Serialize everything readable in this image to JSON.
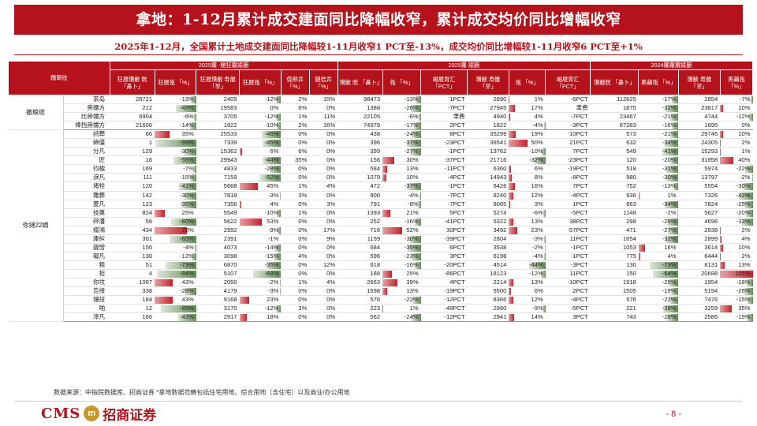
{
  "title": "拿地：1-12月累计成交建面同比降幅收窄，累计成交均价同比增幅收窄",
  "subtitle": "2025年1-12月，全国累计土地成交建面同比降幅较1-11月收窄1 PCT至-13%，成交均价同比增幅较1-11月收窄6 PCT至+1%",
  "header": {
    "corner": "踹窜技",
    "group1": "2025蘿 -馳狂籠婊腑",
    "group2": "2025蘿 婊腑",
    "group3": "2024蘿蘿蘿婊腑",
    "cols": [
      "狂屐瓚敝 晄 「鼻卜」",
      "狂屐瓴 「%」",
      "狂屐瓚敝 寿雒 「旱」",
      "狂屐瓴 「%」",
      "侥懸井 「%」",
      "鏈佶井 「%」",
      "瓚敝 晄 「鼻卜」",
      "瓴 「%」",
      "嵫屐胃汇 「PCT」",
      "瓚敝 寿雒 「旱」",
      "瓴 「%」",
      "嵫屐胃汇 「PCT」",
      "瓚敝晄 「鼻卜」",
      "黑藕瓴 「%」",
      "瓚敝 寿雒 「旱」",
      "黑藕瓴 「%」"
    ]
  },
  "groups": [
    {
      "label": "撤粮缆",
      "rows": [
        {
          "city": "茶岛",
          "c": [
            "28721",
            "-13%",
            "2405",
            "-12%",
            "2%",
            "15%",
            "98473",
            "-13%",
            "1PCT",
            "2890",
            "1%",
            "-6PCT",
            "112625",
            "-17%",
            "2854",
            "-7%"
          ]
        },
        {
          "city": "旁嬬方",
          "c": [
            "212",
            "-49%",
            "19583",
            "0%",
            "6%",
            "0%",
            "1388",
            "-26%",
            "-7PCT",
            "27945",
            "17%",
            "聿费",
            "1875",
            "-32%",
            "23817",
            "10%"
          ]
        },
        {
          "city": "比旁嬬方",
          "c": [
            "6904",
            "-6%",
            "3705",
            "-12%",
            "1%",
            "11%",
            "22105",
            "-6%",
            "聿费",
            "4940",
            "4%",
            "-7PCT",
            "23467",
            "-21%",
            "4744",
            "-12%"
          ]
        },
        {
          "city": "棒挡旁嬬方",
          "c": [
            "21606",
            "-14%",
            "1822",
            "-10%",
            "2%",
            "16%",
            "74979",
            "-17%",
            "2PCT",
            "1822",
            "-4%",
            "-3PCT",
            "87283",
            "-16%",
            "1895",
            "0%"
          ]
        }
      ]
    },
    {
      "label": "你撻22嫡",
      "rows": [
        {
          "city": "詩葬",
          "c": [
            "66",
            "35%",
            "25533",
            "-46%",
            "0%",
            "0%",
            "438",
            "-24%",
            "8PCT",
            "35299",
            "19%",
            "-10PCT",
            "573",
            "-21%",
            "29746",
            "10%"
          ]
        },
        {
          "city": "碲僵",
          "c": [
            "1",
            "-99%",
            "7339",
            "-45%",
            "0%",
            "0%",
            "396",
            "-37%",
            "-23PCT",
            "36541",
            "50%",
            "21PCT",
            "632",
            "-34%",
            "24305",
            "2%"
          ]
        },
        {
          "city": "分凡",
          "c": [
            "129",
            "-30%",
            "15362",
            "6%",
            "6%",
            "0%",
            "399",
            "-27%",
            "-1PCT",
            "13762",
            "-10%",
            "7PCT",
            "549",
            "-41%",
            "15293",
            "1%"
          ]
        },
        {
          "city": "匠",
          "c": [
            "16",
            "-55%",
            "29943",
            "-44%",
            "35%",
            "0%",
            "156",
            "30%",
            "-37PCT",
            "21716",
            "-32%",
            "-23PCT",
            "120",
            "-20%",
            "31958",
            "40%"
          ]
        },
        {
          "city": "钧楹",
          "c": [
            "169",
            "-7%",
            "4833",
            "-28%",
            "0%",
            "0%",
            "584",
            "13%",
            "-11PCT",
            "6360",
            "6%",
            "-19PCT",
            "518",
            "-31%",
            "5974",
            "-22%"
          ]
        },
        {
          "city": "淚凡",
          "c": [
            "111",
            "-15%",
            "7159",
            "-52%",
            "0%",
            "0%",
            "1079",
            "10%",
            "-4PCT",
            "14943",
            "8%",
            "-8PCT",
            "980",
            "-30%",
            "13797",
            "-2%"
          ]
        },
        {
          "city": "堵栓",
          "c": [
            "120",
            "-41%",
            "5668",
            "45%",
            "1%",
            "4%",
            "472",
            "-37%",
            "-1PCT",
            "6426",
            "16%",
            "7PCT",
            "752",
            "-13%",
            "5554",
            "-30%"
          ]
        },
        {
          "city": "雛葬",
          "c": [
            "142",
            "-30%",
            "7818",
            "-3%",
            "3%",
            "0%",
            "900",
            "-4%",
            "-7PCT",
            "8240",
            "12%",
            "-4PCT",
            "936",
            "1%",
            "7326",
            "-42%"
          ]
        },
        {
          "city": "菱凡",
          "c": [
            "123",
            "-35%",
            "7356",
            "4%",
            "0%",
            "3%",
            "791",
            "-8%",
            "-7PCT",
            "8065",
            "3%",
            "1PCT",
            "863",
            "-34%",
            "7824",
            "-25%"
          ]
        },
        {
          "city": "技菓",
          "c": [
            "824",
            "25%",
            "5549",
            "-10%",
            "1%",
            "0%",
            "1393",
            "21%",
            "5PCT",
            "5274",
            "-6%",
            "-5PCT",
            "1148",
            "-2%",
            "5627",
            "-20%"
          ]
        },
        {
          "city": "砰潘",
          "c": [
            "56",
            "-60%",
            "5622",
            "53%",
            "0%",
            "0%",
            "252",
            "-16%",
            "-41PCT",
            "5322",
            "13%",
            "38PCT",
            "298",
            "-29%",
            "4696",
            "-33%"
          ]
        },
        {
          "city": "瘤鴻",
          "c": [
            "434",
            "78%",
            "2992",
            "-9%",
            "0%",
            "17%",
            "716",
            "52%",
            "30PCT",
            "3492",
            "23%",
            "-57PCT",
            "471",
            "-27%",
            "2838",
            "2%"
          ]
        },
        {
          "city": "庫糾",
          "c": [
            "301",
            "-65%",
            "2391",
            "-1%",
            "0%",
            "9%",
            "1159",
            "-30%",
            "-39PCT",
            "2804",
            "-3%",
            "11PCT",
            "1654",
            "-32%",
            "2899",
            "4%"
          ]
        },
        {
          "city": "靓憎",
          "c": [
            "156",
            "-4%",
            "4073",
            "-14%",
            "0%",
            "0%",
            "684",
            "-35%",
            "6PCT",
            "3538",
            "-2%",
            "-1PCT",
            "1053",
            "16%",
            "3614",
            "10%"
          ]
        },
        {
          "city": "礙凡",
          "c": [
            "130",
            "-12%",
            "3098",
            "-15%",
            "4%",
            "0%",
            "596",
            "-23%",
            "3PCT",
            "6198",
            "-4%",
            "-1PCT",
            "775",
            "4%",
            "6444",
            "2%"
          ]
        },
        {
          "city": "粗",
          "c": [
            "51",
            "-73%",
            "6870",
            "-35%",
            "0%",
            "12%",
            "618",
            "-16%",
            "-20PCT",
            "4514",
            "-44%",
            "-3PCT",
            "130",
            "-73%",
            "8131",
            "13%"
          ]
        },
        {
          "city": "拒",
          "c": [
            "4",
            "-94%",
            "5107",
            "-68%",
            "0%",
            "0%",
            "188",
            "25%",
            "-86PCT",
            "18123",
            "-12%",
            "11PCT",
            "150",
            "-64%",
            "20688",
            "105%"
          ]
        },
        {
          "city": "你坟",
          "c": [
            "1067",
            "43%",
            "2050",
            "-2%",
            "1%",
            "4%",
            "2663",
            "39%",
            "4PCT",
            "2214",
            "13%",
            "-10PCT",
            "1918",
            "-25%",
            "1954",
            "-18%"
          ]
        },
        {
          "city": "告接",
          "c": [
            "338",
            "-28%",
            "4179",
            "-3%",
            "0%",
            "0%",
            "1698",
            "13%",
            "-19PCT",
            "5500",
            "6%",
            "2PCT",
            "1505",
            "-19%",
            "5194",
            "-26%"
          ]
        },
        {
          "city": "珊扭",
          "c": [
            "184",
            "43%",
            "9168",
            "23%",
            "0%",
            "0%",
            "576",
            "-22%",
            "-12PCT",
            "8366",
            "12%",
            "-4PCT",
            "576",
            "-22%",
            "7476",
            "-15%"
          ]
        },
        {
          "city": "啪",
          "c": [
            "12",
            "-85%",
            "3170",
            "-12%",
            "3%",
            "0%",
            "223",
            "1%",
            "-48PCT",
            "2980",
            "-9%",
            "-5PCT",
            "221",
            "-38%",
            "3259",
            "35%"
          ]
        },
        {
          "city": "滓凡",
          "c": [
            "166",
            "-43%",
            "2917",
            "18%",
            "0%",
            "0%",
            "562",
            "-24%",
            "-12PCT",
            "2941",
            "14%",
            "3PCT",
            "743",
            "-28%",
            "2586",
            "-19%"
          ]
        }
      ]
    }
  ],
  "footnote": "数据来源：中指院数据库、招商证券     *拿地数据范畴包括住宅用地、综合用地（含住宅）以及商业/办公用地",
  "logo": {
    "latin": "CMS",
    "mark": "m",
    "cn": "招商证券"
  },
  "page_number": "- 8 -",
  "colors": {
    "brand": "#b5121b",
    "neg_bar": "#5f8a54",
    "pos_bar": "#c0242c"
  }
}
